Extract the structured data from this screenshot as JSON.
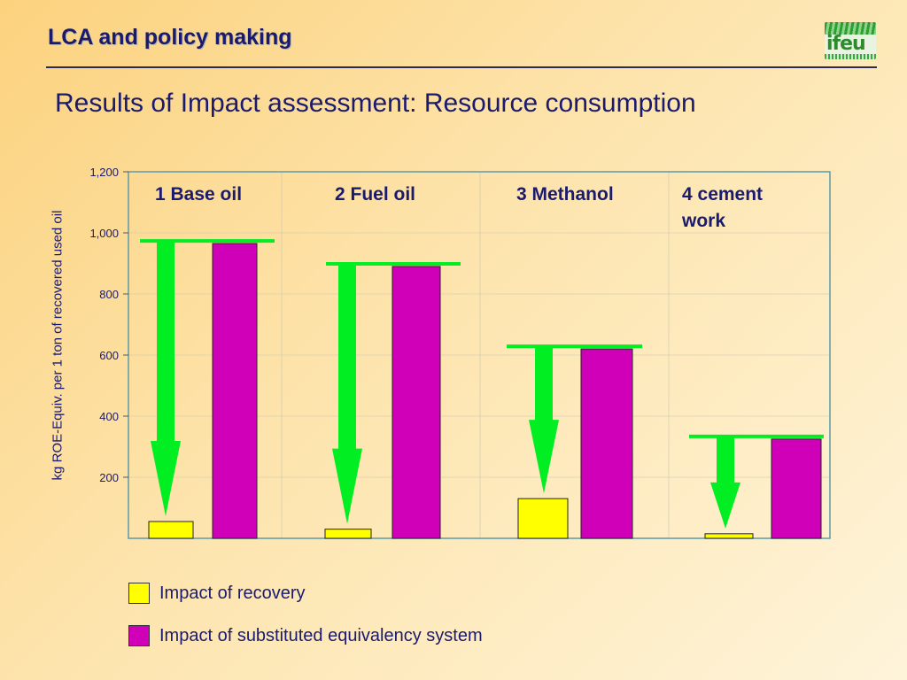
{
  "header": {
    "title": "LCA and policy making",
    "logo_text": "ifeu"
  },
  "subtitle": "Results of Impact assessment: Resource consumption",
  "colors": {
    "recovery": "#ffff00",
    "substituted": "#d000b8",
    "arrow": "#00ee22",
    "text": "#1a1a6e",
    "plot_border": "#5b9aaa"
  },
  "legend": [
    {
      "label": "Impact of recovery",
      "color": "#ffff00"
    },
    {
      "label": "Impact of substituted equivalency system",
      "color": "#d000b8"
    }
  ],
  "chart_data": {
    "type": "bar",
    "categories": [
      "1 Base oil",
      "2 Fuel oil",
      "3 Methanol",
      "4 cement work"
    ],
    "series": [
      {
        "name": "Impact of recovery",
        "values": [
          55,
          30,
          130,
          15
        ]
      },
      {
        "name": "Impact of substituted equivalency system",
        "values": [
          965,
          890,
          620,
          325
        ]
      }
    ],
    "ylabel": "kg  ROE-Equiv. per 1 ton of recovered used oil",
    "xlabel": "",
    "ylim": [
      0,
      1200
    ],
    "yticks": [
      200,
      400,
      600,
      800,
      1000,
      1200
    ],
    "ytick_labels": [
      "200",
      "400",
      "600",
      "800",
      "1,000",
      "1,200"
    ],
    "grid": true,
    "legend_position": "bottom-left",
    "annotations": "green arrows from substituted level down to recovery bar"
  }
}
